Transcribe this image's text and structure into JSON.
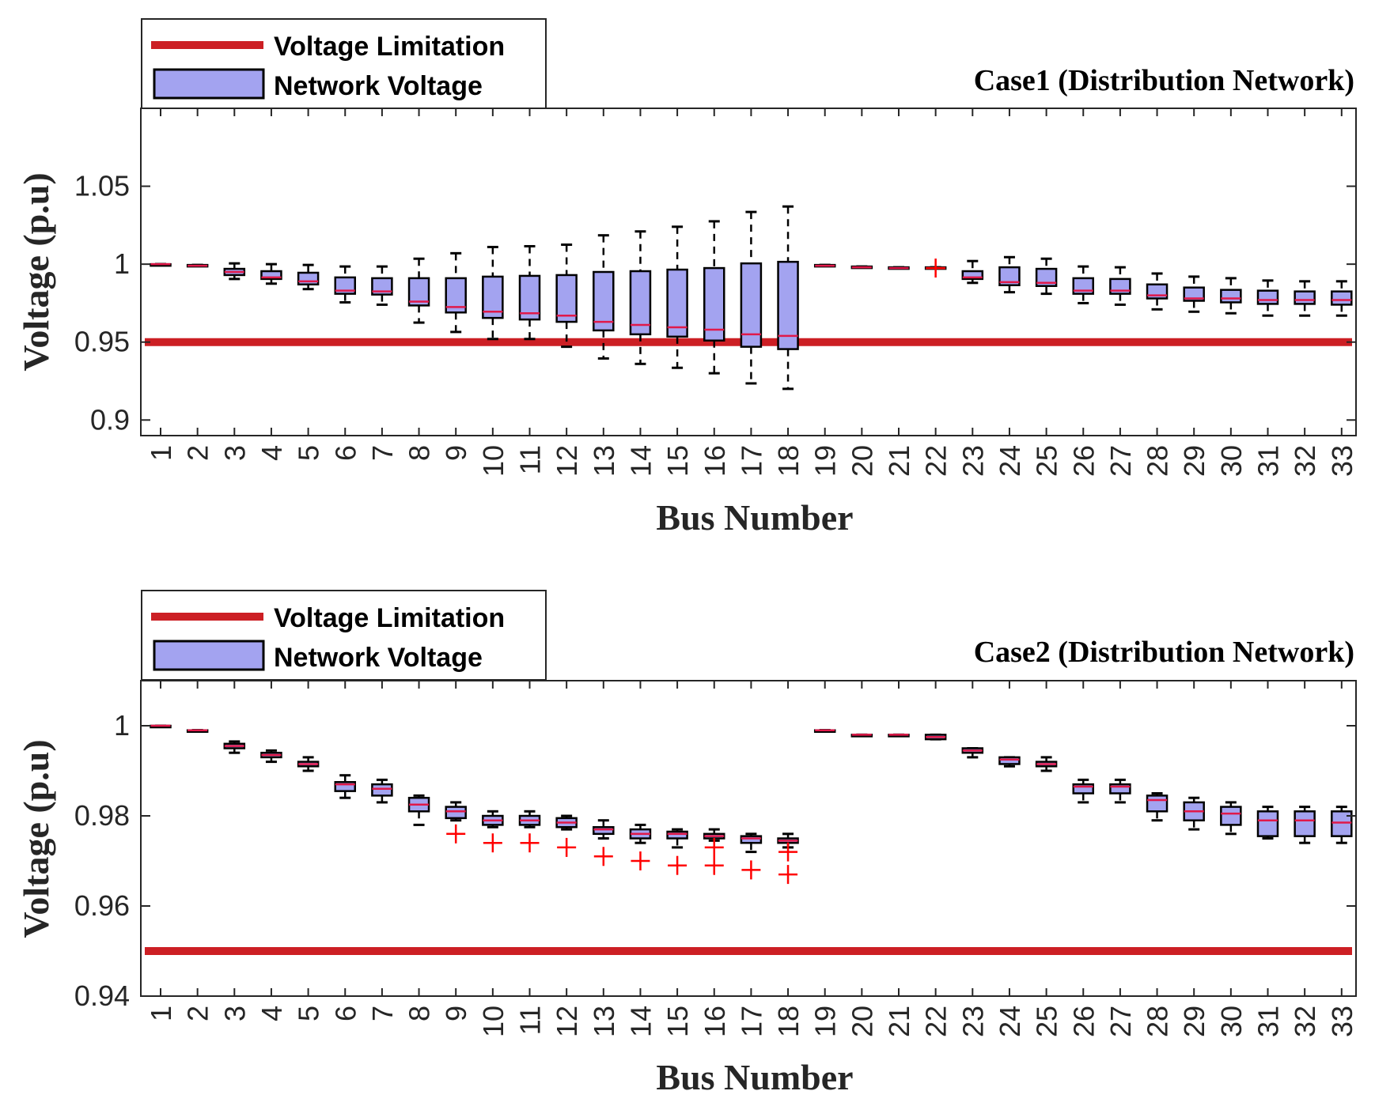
{
  "colors": {
    "limit": "#cc1f24",
    "box_fill": "#a3a3f0",
    "median": "#e0194a",
    "outlier": "#ff0000",
    "axis": "#262626"
  },
  "legend": {
    "limit_label": "Voltage Limitation",
    "box_label": "Network Voltage"
  },
  "chart_data": [
    {
      "type": "boxplot",
      "title": "Case1 (Distribution Network)",
      "xlabel": "Bus Number",
      "ylabel": "Voltage (p.u)",
      "ylim": [
        0.89,
        1.1
      ],
      "yticks": [
        0.9,
        0.95,
        1,
        1.05
      ],
      "ytick_labels": [
        "0.9",
        "0.95",
        "1",
        "1.05"
      ],
      "limit": 0.95,
      "categories": [
        "1",
        "2",
        "3",
        "4",
        "5",
        "6",
        "7",
        "8",
        "9",
        "10",
        "11",
        "12",
        "13",
        "14",
        "15",
        "16",
        "17",
        "18",
        "19",
        "20",
        "21",
        "22",
        "23",
        "24",
        "25",
        "26",
        "27",
        "28",
        "29",
        "30",
        "31",
        "32",
        "33"
      ],
      "boxes": [
        {
          "min": 1.0,
          "q1": 1.0,
          "med": 1.0,
          "q3": 1.0,
          "max": 1.0
        },
        {
          "min": 0.999,
          "q1": 0.999,
          "med": 0.999,
          "q3": 0.9995,
          "max": 0.9995
        },
        {
          "min": 0.9905,
          "q1": 0.993,
          "med": 0.995,
          "q3": 0.997,
          "max": 1.0005
        },
        {
          "min": 0.9875,
          "q1": 0.9905,
          "med": 0.9915,
          "q3": 0.9955,
          "max": 1.0
        },
        {
          "min": 0.984,
          "q1": 0.987,
          "med": 0.989,
          "q3": 0.9945,
          "max": 0.9995
        },
        {
          "min": 0.9755,
          "q1": 0.981,
          "med": 0.983,
          "q3": 0.9915,
          "max": 0.9985
        },
        {
          "min": 0.974,
          "q1": 0.9805,
          "med": 0.9825,
          "q3": 0.991,
          "max": 0.9985
        },
        {
          "min": 0.9625,
          "q1": 0.9735,
          "med": 0.976,
          "q3": 0.991,
          "max": 1.0035
        },
        {
          "min": 0.9565,
          "q1": 0.969,
          "med": 0.9725,
          "q3": 0.991,
          "max": 1.007
        },
        {
          "min": 0.952,
          "q1": 0.9655,
          "med": 0.9695,
          "q3": 0.992,
          "max": 1.011
        },
        {
          "min": 0.952,
          "q1": 0.9645,
          "med": 0.9685,
          "q3": 0.9925,
          "max": 1.0115
        },
        {
          "min": 0.947,
          "q1": 0.963,
          "med": 0.967,
          "q3": 0.993,
          "max": 1.0125
        },
        {
          "min": 0.9395,
          "q1": 0.9575,
          "med": 0.963,
          "q3": 0.995,
          "max": 1.0185
        },
        {
          "min": 0.936,
          "q1": 0.955,
          "med": 0.961,
          "q3": 0.9955,
          "max": 1.021
        },
        {
          "min": 0.9335,
          "q1": 0.9535,
          "med": 0.9595,
          "q3": 0.9965,
          "max": 1.024
        },
        {
          "min": 0.93,
          "q1": 0.951,
          "med": 0.958,
          "q3": 0.9975,
          "max": 1.0275
        },
        {
          "min": 0.9235,
          "q1": 0.947,
          "med": 0.955,
          "q3": 1.0005,
          "max": 1.0335
        },
        {
          "min": 0.92,
          "q1": 0.9455,
          "med": 0.954,
          "q3": 1.0015,
          "max": 1.037
        },
        {
          "min": 0.999,
          "q1": 0.999,
          "med": 0.999,
          "q3": 0.9995,
          "max": 0.9995
        },
        {
          "min": 0.998,
          "q1": 0.998,
          "med": 0.998,
          "q3": 0.9985,
          "max": 0.9985
        },
        {
          "min": 0.9975,
          "q1": 0.9975,
          "med": 0.9975,
          "q3": 0.998,
          "max": 0.998
        },
        {
          "min": 0.9975,
          "q1": 0.9975,
          "med": 0.9975,
          "q3": 0.998,
          "max": 0.998
        },
        {
          "min": 0.988,
          "q1": 0.9905,
          "med": 0.9915,
          "q3": 0.9955,
          "max": 1.002
        },
        {
          "min": 0.982,
          "q1": 0.9865,
          "med": 0.9885,
          "q3": 0.998,
          "max": 1.0045
        },
        {
          "min": 0.981,
          "q1": 0.986,
          "med": 0.988,
          "q3": 0.997,
          "max": 1.0035
        },
        {
          "min": 0.975,
          "q1": 0.981,
          "med": 0.983,
          "q3": 0.991,
          "max": 0.9985
        },
        {
          "min": 0.974,
          "q1": 0.981,
          "med": 0.983,
          "q3": 0.9905,
          "max": 0.998
        },
        {
          "min": 0.971,
          "q1": 0.978,
          "med": 0.98,
          "q3": 0.987,
          "max": 0.994
        },
        {
          "min": 0.9695,
          "q1": 0.9765,
          "med": 0.978,
          "q3": 0.985,
          "max": 0.992
        },
        {
          "min": 0.9685,
          "q1": 0.9755,
          "med": 0.978,
          "q3": 0.9835,
          "max": 0.991
        },
        {
          "min": 0.967,
          "q1": 0.9745,
          "med": 0.977,
          "q3": 0.983,
          "max": 0.9895
        },
        {
          "min": 0.967,
          "q1": 0.9745,
          "med": 0.977,
          "q3": 0.9825,
          "max": 0.989
        },
        {
          "min": 0.967,
          "q1": 0.974,
          "med": 0.977,
          "q3": 0.9825,
          "max": 0.989
        }
      ],
      "outliers": [
        {
          "bus": 22,
          "value": 0.9975
        }
      ]
    },
    {
      "type": "boxplot",
      "title": "Case2 (Distribution Network)",
      "xlabel": "Bus Number",
      "ylabel": "Voltage (p.u)",
      "ylim": [
        0.94,
        1.01
      ],
      "yticks": [
        0.94,
        0.96,
        0.98,
        1
      ],
      "ytick_labels": [
        "0.94",
        "0.96",
        "0.98",
        "1"
      ],
      "limit": 0.95,
      "categories": [
        "1",
        "2",
        "3",
        "4",
        "5",
        "6",
        "7",
        "8",
        "9",
        "10",
        "11",
        "12",
        "13",
        "14",
        "15",
        "16",
        "17",
        "18",
        "19",
        "20",
        "21",
        "22",
        "23",
        "24",
        "25",
        "26",
        "27",
        "28",
        "29",
        "30",
        "31",
        "32",
        "33"
      ],
      "boxes": [
        {
          "min": 1.0,
          "q1": 1.0,
          "med": 1.0,
          "q3": 1.0,
          "max": 1.0
        },
        {
          "min": 0.999,
          "q1": 0.999,
          "med": 0.999,
          "q3": 0.999,
          "max": 0.999
        },
        {
          "min": 0.994,
          "q1": 0.995,
          "med": 0.9955,
          "q3": 0.996,
          "max": 0.9965
        },
        {
          "min": 0.992,
          "q1": 0.993,
          "med": 0.9935,
          "q3": 0.994,
          "max": 0.9945
        },
        {
          "min": 0.99,
          "q1": 0.991,
          "med": 0.9915,
          "q3": 0.992,
          "max": 0.993
        },
        {
          "min": 0.984,
          "q1": 0.9855,
          "med": 0.987,
          "q3": 0.9875,
          "max": 0.989
        },
        {
          "min": 0.983,
          "q1": 0.9845,
          "med": 0.986,
          "q3": 0.987,
          "max": 0.988
        },
        {
          "min": 0.978,
          "q1": 0.981,
          "med": 0.9825,
          "q3": 0.984,
          "max": 0.9845
        },
        {
          "min": 0.979,
          "q1": 0.9795,
          "med": 0.981,
          "q3": 0.982,
          "max": 0.983
        },
        {
          "min": 0.9775,
          "q1": 0.978,
          "med": 0.979,
          "q3": 0.98,
          "max": 0.981
        },
        {
          "min": 0.9775,
          "q1": 0.978,
          "med": 0.979,
          "q3": 0.98,
          "max": 0.981
        },
        {
          "min": 0.977,
          "q1": 0.9775,
          "med": 0.9785,
          "q3": 0.9795,
          "max": 0.98
        },
        {
          "min": 0.975,
          "q1": 0.976,
          "med": 0.977,
          "q3": 0.9775,
          "max": 0.979
        },
        {
          "min": 0.974,
          "q1": 0.975,
          "med": 0.976,
          "q3": 0.977,
          "max": 0.978
        },
        {
          "min": 0.973,
          "q1": 0.975,
          "med": 0.976,
          "q3": 0.9765,
          "max": 0.977
        },
        {
          "min": 0.9745,
          "q1": 0.975,
          "med": 0.9755,
          "q3": 0.976,
          "max": 0.977
        },
        {
          "min": 0.972,
          "q1": 0.974,
          "med": 0.975,
          "q3": 0.9755,
          "max": 0.976
        },
        {
          "min": 0.973,
          "q1": 0.974,
          "med": 0.9745,
          "q3": 0.975,
          "max": 0.976
        },
        {
          "min": 0.999,
          "q1": 0.999,
          "med": 0.999,
          "q3": 0.999,
          "max": 0.999
        },
        {
          "min": 0.998,
          "q1": 0.998,
          "med": 0.998,
          "q3": 0.998,
          "max": 0.998
        },
        {
          "min": 0.998,
          "q1": 0.998,
          "med": 0.998,
          "q3": 0.998,
          "max": 0.998
        },
        {
          "min": 0.997,
          "q1": 0.997,
          "med": 0.9975,
          "q3": 0.998,
          "max": 0.998
        },
        {
          "min": 0.993,
          "q1": 0.994,
          "med": 0.9945,
          "q3": 0.995,
          "max": 0.995
        },
        {
          "min": 0.991,
          "q1": 0.9915,
          "med": 0.9925,
          "q3": 0.993,
          "max": 0.993
        },
        {
          "min": 0.99,
          "q1": 0.991,
          "med": 0.9915,
          "q3": 0.992,
          "max": 0.993
        },
        {
          "min": 0.983,
          "q1": 0.985,
          "med": 0.9865,
          "q3": 0.987,
          "max": 0.988
        },
        {
          "min": 0.983,
          "q1": 0.985,
          "med": 0.9865,
          "q3": 0.987,
          "max": 0.988
        },
        {
          "min": 0.979,
          "q1": 0.981,
          "med": 0.9835,
          "q3": 0.9845,
          "max": 0.985
        },
        {
          "min": 0.977,
          "q1": 0.979,
          "med": 0.981,
          "q3": 0.983,
          "max": 0.984
        },
        {
          "min": 0.976,
          "q1": 0.978,
          "med": 0.9805,
          "q3": 0.982,
          "max": 0.983
        },
        {
          "min": 0.975,
          "q1": 0.9755,
          "med": 0.979,
          "q3": 0.981,
          "max": 0.982
        },
        {
          "min": 0.974,
          "q1": 0.9755,
          "med": 0.979,
          "q3": 0.981,
          "max": 0.982
        },
        {
          "min": 0.974,
          "q1": 0.9755,
          "med": 0.9785,
          "q3": 0.981,
          "max": 0.982
        }
      ],
      "outliers": [
        {
          "bus": 9,
          "value": 0.976
        },
        {
          "bus": 10,
          "value": 0.974
        },
        {
          "bus": 11,
          "value": 0.974
        },
        {
          "bus": 12,
          "value": 0.973
        },
        {
          "bus": 13,
          "value": 0.971
        },
        {
          "bus": 14,
          "value": 0.97
        },
        {
          "bus": 15,
          "value": 0.969
        },
        {
          "bus": 16,
          "value": 0.973
        },
        {
          "bus": 16,
          "value": 0.969
        },
        {
          "bus": 17,
          "value": 0.968
        },
        {
          "bus": 18,
          "value": 0.972
        },
        {
          "bus": 18,
          "value": 0.967
        }
      ]
    }
  ]
}
